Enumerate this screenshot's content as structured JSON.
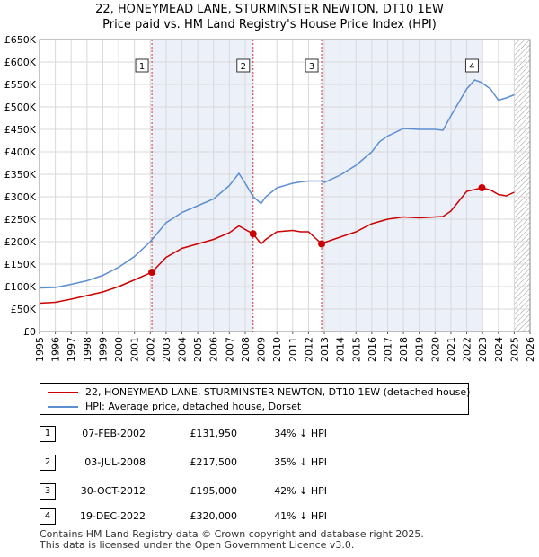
{
  "title": {
    "line1": "22, HONEYMEAD LANE, STURMINSTER NEWTON, DT10 1EW",
    "line2": "Price paid vs. HM Land Registry's House Price Index (HPI)"
  },
  "colors": {
    "property": "#cc0000",
    "hpi": "#5b8fd0",
    "shade": "#dde6f5",
    "grid": "#d9d9d9",
    "marker": "#cc0000",
    "vline": "#cc3333"
  },
  "chart_data": {
    "type": "line",
    "xlim": [
      1995,
      2026
    ],
    "ylim": [
      0,
      650000
    ],
    "yticks": [
      {
        "v": 0,
        "label": "£0"
      },
      {
        "v": 50000,
        "label": "£50K"
      },
      {
        "v": 100000,
        "label": "£100K"
      },
      {
        "v": 150000,
        "label": "£150K"
      },
      {
        "v": 200000,
        "label": "£200K"
      },
      {
        "v": 250000,
        "label": "£250K"
      },
      {
        "v": 300000,
        "label": "£300K"
      },
      {
        "v": 350000,
        "label": "£350K"
      },
      {
        "v": 400000,
        "label": "£400K"
      },
      {
        "v": 450000,
        "label": "£450K"
      },
      {
        "v": 500000,
        "label": "£500K"
      },
      {
        "v": 550000,
        "label": "£550K"
      },
      {
        "v": 600000,
        "label": "£600K"
      },
      {
        "v": 650000,
        "label": "£650K"
      }
    ],
    "xticks": [
      1995,
      1996,
      1997,
      1998,
      1999,
      2000,
      2001,
      2002,
      2003,
      2004,
      2005,
      2006,
      2007,
      2008,
      2009,
      2010,
      2011,
      2012,
      2013,
      2014,
      2015,
      2016,
      2017,
      2018,
      2019,
      2020,
      2021,
      2022,
      2023,
      2024,
      2025,
      2026
    ],
    "series": [
      {
        "name": "HPI: Average price, detached house, Dorset",
        "x": [
          1995,
          1996,
          1997,
          1998,
          1999,
          2000,
          2001,
          2002,
          2003,
          2004,
          2005,
          2006,
          2007,
          2007.6,
          2008,
          2008.5,
          2009,
          2009.3,
          2010,
          2011,
          2011.5,
          2012,
          2012.8,
          2013,
          2014,
          2015,
          2016,
          2016.5,
          2017,
          2018,
          2019,
          2020,
          2020.5,
          2021,
          2021.5,
          2022,
          2022.5,
          2022.9,
          2023.5,
          2024,
          2024.5,
          2025
        ],
        "values": [
          97000,
          98000,
          105000,
          113000,
          125000,
          143000,
          167000,
          200000,
          242000,
          265000,
          280000,
          295000,
          325000,
          352000,
          330000,
          300000,
          285000,
          300000,
          320000,
          330000,
          333000,
          335000,
          335000,
          332000,
          348000,
          370000,
          400000,
          423000,
          435000,
          452000,
          450000,
          450000,
          448000,
          480000,
          510000,
          540000,
          560000,
          555000,
          540000,
          515000,
          520000,
          527000
        ]
      },
      {
        "name": "22, HONEYMEAD LANE, STURMINSTER NEWTON, DT10 1EW (detached house)",
        "x": [
          1995,
          1996,
          1997,
          1998,
          1999,
          2000,
          2001,
          2002.1,
          2003,
          2004,
          2005,
          2006,
          2007,
          2007.6,
          2008.5,
          2009,
          2009.3,
          2010,
          2011,
          2011.5,
          2012,
          2012.83,
          2013,
          2014,
          2015,
          2016,
          2017,
          2018,
          2019,
          2020,
          2020.5,
          2021,
          2021.5,
          2022,
          2022.96,
          2023.5,
          2024,
          2024.5,
          2025
        ],
        "values": [
          63000,
          65000,
          72000,
          80000,
          88000,
          100000,
          115000,
          131950,
          165000,
          185000,
          195000,
          205000,
          220000,
          235000,
          217500,
          195000,
          205000,
          222000,
          225000,
          222000,
          222000,
          195000,
          198000,
          210000,
          222000,
          240000,
          250000,
          255000,
          253000,
          255000,
          256000,
          268000,
          290000,
          312000,
          320000,
          315000,
          305000,
          302000,
          310000
        ]
      }
    ],
    "transactions": [
      {
        "n": "1",
        "x": 2002.1,
        "price": 131950
      },
      {
        "n": "2",
        "x": 2008.5,
        "price": 217500
      },
      {
        "n": "3",
        "x": 2012.83,
        "price": 195000
      },
      {
        "n": "4",
        "x": 2022.96,
        "price": 320000
      }
    ],
    "shade_ranges": [
      [
        2002.1,
        2008.5
      ],
      [
        2012.83,
        2022.96
      ]
    ],
    "hatch_from": 2025.0
  },
  "legend": {
    "property": "22, HONEYMEAD LANE, STURMINSTER NEWTON, DT10 1EW (detached house)",
    "hpi": "HPI: Average price, detached house, Dorset"
  },
  "transactions_table": [
    {
      "num": "1",
      "date": "07-FEB-2002",
      "price": "£131,950",
      "hpi": "34% ↓ HPI"
    },
    {
      "num": "2",
      "date": "03-JUL-2008",
      "price": "£217,500",
      "hpi": "35% ↓ HPI"
    },
    {
      "num": "3",
      "date": "30-OCT-2012",
      "price": "£195,000",
      "hpi": "42% ↓ HPI"
    },
    {
      "num": "4",
      "date": "19-DEC-2022",
      "price": "£320,000",
      "hpi": "41% ↓ HPI"
    }
  ],
  "footer": {
    "line1": "Contains HM Land Registry data © Crown copyright and database right 2025.",
    "line2": "This data is licensed under the Open Government Licence v3.0."
  }
}
